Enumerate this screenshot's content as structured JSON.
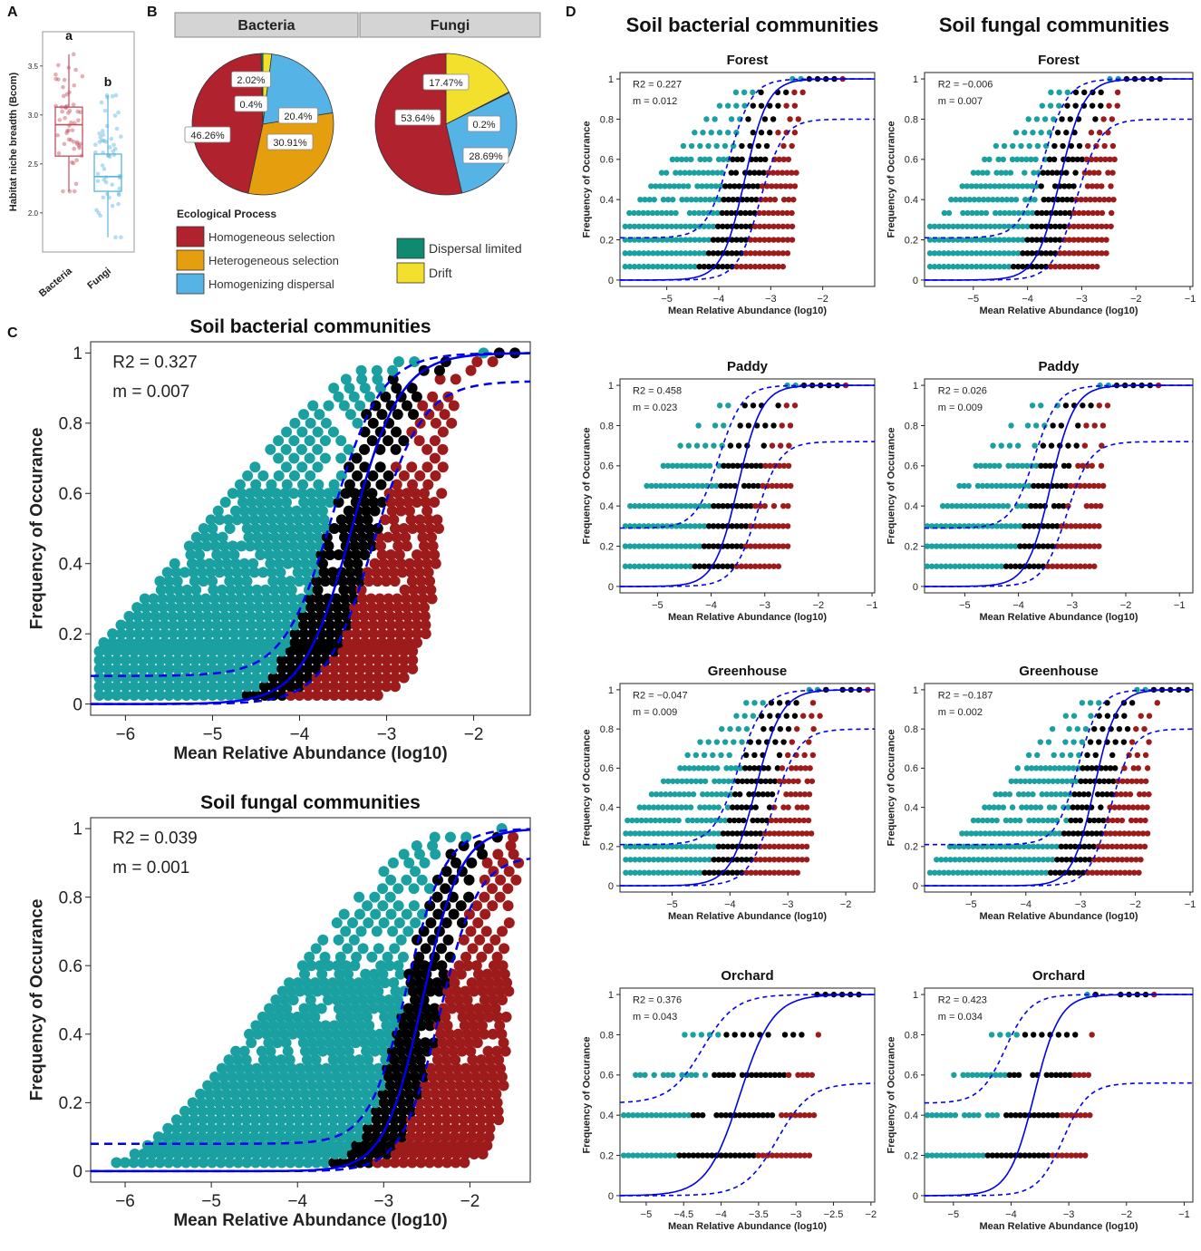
{
  "colors": {
    "homogeneous_selection": "#b0222d",
    "heterogeneous_selection": "#e59f0e",
    "homogenizing_dispersal": "#55b4e5",
    "dispersal_limited": "#0f8a71",
    "drift": "#f2e02c",
    "neutral_fit": "#0000ee",
    "above": "#1aa0a0",
    "below": "#9e1b1b",
    "within": "#000000",
    "bacteria_box": "#c0505a",
    "fungi_box": "#5ab4e0"
  },
  "panel_labels": {
    "a": "A",
    "b": "B",
    "c": "C",
    "d": "D"
  },
  "chart_data": [
    {
      "id": "A",
      "type": "box",
      "ylabel": "Habitat niche breadth (Bcom)",
      "categories": [
        "Bacteria",
        "Fungi"
      ],
      "ylim": [
        1.6,
        3.85
      ],
      "yticks": [
        2.0,
        2.5,
        3.0,
        3.5
      ],
      "ytick_labels": [
        "2.0",
        "2.5",
        "3.0",
        "3.5"
      ],
      "boxes": [
        {
          "name": "Bacteria",
          "min": 2.22,
          "q1": 2.58,
          "median": 2.9,
          "q3": 3.08,
          "max": 3.62,
          "letter": "a"
        },
        {
          "name": "Fungi",
          "min": 1.75,
          "q1": 2.22,
          "median": 2.37,
          "q3": 2.6,
          "max": 3.2,
          "letter": "b"
        }
      ]
    },
    {
      "id": "B",
      "type": "pie",
      "legend_title": "Ecological Process",
      "legend": [
        "Homogeneous selection",
        "Heterogeneous selection",
        "Homogenizing dispersal",
        "Dispersal limited",
        "Drift"
      ],
      "pies": [
        {
          "title": "Bacteria",
          "slices": [
            {
              "label": "Drift",
              "value": 2.02,
              "text": "2.02%"
            },
            {
              "label": "Homogenizing dispersal",
              "value": 20.4,
              "text": "20.4%"
            },
            {
              "label": "Heterogeneous selection",
              "value": 30.91,
              "text": "30.91%"
            },
            {
              "label": "Homogeneous selection",
              "value": 46.26,
              "text": "46.26%"
            },
            {
              "label": "Dispersal limited",
              "value": 0.4,
              "text": "0.4%"
            }
          ]
        },
        {
          "title": "Fungi",
          "slices": [
            {
              "label": "Drift",
              "value": 17.47,
              "text": "17.47%"
            },
            {
              "label": "Heterogeneous selection",
              "value": 0.2,
              "text": "0.2%"
            },
            {
              "label": "Homogenizing dispersal",
              "value": 28.69,
              "text": "28.69%"
            },
            {
              "label": "Homogeneous selection",
              "value": 53.64,
              "text": "53.64%"
            }
          ]
        }
      ]
    },
    {
      "id": "C1",
      "type": "scatter",
      "title": "Soil bacterial communities",
      "xlabel": "Mean Relative Abundance (log10)",
      "ylabel": "Frequency of Occurance",
      "r2": "R2 = 0.327",
      "m": "m = 0.007",
      "xlim": [
        -6.4,
        -1.35
      ],
      "xticks": [
        -6,
        -5,
        -4,
        -3,
        -2
      ],
      "yticks": [
        0,
        0.2,
        0.4,
        0.6,
        0.8,
        1
      ],
      "fit_center": -3.4,
      "fit_scale": 0.28,
      "upper_dx": -0.22,
      "lower_dx": 0.25,
      "upper_min": 0.08,
      "lower_max": 0.92,
      "levels": 40,
      "xmin_data": -6.3,
      "xmax_data": -1.45
    },
    {
      "id": "C2",
      "type": "scatter",
      "title": "Soil fungal communities",
      "xlabel": "Mean Relative Abundance (log10)",
      "ylabel": "Frequency of Occurance",
      "r2": "R2 = 0.039",
      "m": "m = 0.001",
      "xlim": [
        -6.4,
        -1.3
      ],
      "xticks": [
        -6,
        -5,
        -4,
        -3,
        -2
      ],
      "yticks": [
        0,
        0.2,
        0.4,
        0.6,
        0.8,
        1
      ],
      "fit_center": -2.55,
      "fit_scale": 0.22,
      "upper_dx": -0.18,
      "lower_dx": 0.2,
      "upper_min": 0.08,
      "lower_max": 0.92,
      "levels": 40,
      "xmin_data": -6.3,
      "xmax_data": -1.4
    },
    {
      "id": "D-forest-bac",
      "type": "scatter",
      "title": "Forest",
      "column_title": "Soil bacterial communities",
      "xlabel": "Mean Relative Abundance (log10)",
      "ylabel": "Frequency of Occurance",
      "r2": "R2 = 0.227",
      "m": "m = 0.012",
      "xlim": [
        -5.9,
        -1.0
      ],
      "xticks": [
        -5,
        -4,
        -3,
        -2
      ],
      "yticks": [
        0,
        0.2,
        0.4,
        0.6,
        0.8,
        1
      ],
      "fit_center": -3.5,
      "fit_scale": 0.22,
      "upper_dx": -0.3,
      "lower_dx": 0.3,
      "upper_min": 0.21,
      "lower_max": 0.8,
      "levels": 15,
      "xmin_data": -5.8,
      "xmax_data": -1.1
    },
    {
      "id": "D-forest-fun",
      "type": "scatter",
      "title": "Forest",
      "column_title": "Soil fungal communities",
      "xlabel": "Mean Relative Abundance (log10)",
      "ylabel": "Frequency of Occurance",
      "r2": "R2 = −0.006",
      "m": "m = 0.007",
      "xlim": [
        -5.9,
        -0.95
      ],
      "xticks": [
        -5,
        -4,
        -3,
        -2,
        -1
      ],
      "yticks": [
        0,
        0.2,
        0.4,
        0.6,
        0.8,
        1
      ],
      "fit_center": -3.4,
      "fit_scale": 0.22,
      "upper_dx": -0.3,
      "lower_dx": 0.3,
      "upper_min": 0.21,
      "lower_max": 0.8,
      "levels": 15,
      "xmin_data": -5.8,
      "xmax_data": -1.05
    },
    {
      "id": "D-paddy-bac",
      "type": "scatter",
      "title": "Paddy",
      "xlabel": "Mean Relative Abundance (log10)",
      "ylabel": "Frequency of Occurance",
      "r2": "R2 = 0.458",
      "m": "m = 0.023",
      "xlim": [
        -5.7,
        -0.95
      ],
      "xticks": [
        -5,
        -4,
        -3,
        -2,
        -1
      ],
      "yticks": [
        0,
        0.2,
        0.4,
        0.6,
        0.8,
        1
      ],
      "fit_center": -3.5,
      "fit_scale": 0.22,
      "upper_dx": -0.35,
      "lower_dx": 0.35,
      "upper_min": 0.29,
      "lower_max": 0.72,
      "levels": 10,
      "xmin_data": -5.6,
      "xmax_data": -1.0
    },
    {
      "id": "D-paddy-fun",
      "type": "scatter",
      "title": "Paddy",
      "xlabel": "Mean Relative Abundance (log10)",
      "ylabel": "Frequency of Occurance",
      "r2": "R2 = 0.026",
      "m": "m = 0.009",
      "xlim": [
        -5.75,
        -0.75
      ],
      "xticks": [
        -5,
        -4,
        -3,
        -2,
        -1
      ],
      "yticks": [
        0,
        0.2,
        0.4,
        0.6,
        0.8,
        1
      ],
      "fit_center": -3.4,
      "fit_scale": 0.22,
      "upper_dx": -0.3,
      "lower_dx": 0.3,
      "upper_min": 0.29,
      "lower_max": 0.72,
      "levels": 10,
      "xmin_data": -5.7,
      "xmax_data": -0.85
    },
    {
      "id": "D-greenhouse-bac",
      "type": "scatter",
      "title": "Greenhouse",
      "xlabel": "Mean Relative Abundance (log10)",
      "ylabel": "Frequency of Occurance",
      "r2": "R2 = −0.047",
      "m": "m = 0.009",
      "xlim": [
        -5.9,
        -1.5
      ],
      "xticks": [
        -5,
        -4,
        -3,
        -2
      ],
      "yticks": [
        0,
        0.2,
        0.4,
        0.6,
        0.8,
        1
      ],
      "fit_center": -3.55,
      "fit_scale": 0.22,
      "upper_dx": -0.3,
      "lower_dx": 0.3,
      "upper_min": 0.21,
      "lower_max": 0.8,
      "levels": 15,
      "xmin_data": -5.8,
      "xmax_data": -1.6
    },
    {
      "id": "D-greenhouse-fun",
      "type": "scatter",
      "title": "Greenhouse",
      "xlabel": "Mean Relative Abundance (log10)",
      "ylabel": "Frequency of Occurance",
      "r2": "R2 = −0.187",
      "m": "m = 0.002",
      "xlim": [
        -5.85,
        -0.95
      ],
      "xticks": [
        -5,
        -4,
        -3,
        -2,
        -1
      ],
      "yticks": [
        0,
        0.2,
        0.4,
        0.6,
        0.8,
        1
      ],
      "fit_center": -2.75,
      "fit_scale": 0.2,
      "upper_dx": -0.3,
      "lower_dx": 0.3,
      "upper_min": 0.21,
      "lower_max": 0.8,
      "levels": 15,
      "xmin_data": -5.75,
      "xmax_data": -1.05
    },
    {
      "id": "D-orchard-bac",
      "type": "scatter",
      "title": "Orchard",
      "xlabel": "Mean Relative Abundance (log10)",
      "ylabel": "Frequency of Occurance",
      "r2": "R2 = 0.376",
      "m": "m = 0.043",
      "xlim": [
        -5.35,
        -1.95
      ],
      "xticks": [
        -5,
        -4.5,
        -4,
        -3.5,
        -3,
        -2.5,
        -2
      ],
      "yticks": [
        0,
        0.2,
        0.4,
        0.6,
        0.8,
        1
      ],
      "fit_center": -3.75,
      "fit_scale": 0.22,
      "upper_dx": -0.5,
      "lower_dx": 0.5,
      "upper_min": 0.46,
      "lower_max": 0.56,
      "levels": 5,
      "xmin_data": -5.3,
      "xmax_data": -2.0
    },
    {
      "id": "D-orchard-fun",
      "type": "scatter",
      "title": "Orchard",
      "xlabel": "Mean Relative Abundance (log10)",
      "ylabel": "Frequency of Occurance",
      "r2": "R2 = 0.423",
      "m": "m = 0.034",
      "xlim": [
        -5.5,
        -0.85
      ],
      "xticks": [
        -5,
        -4,
        -3,
        -2,
        -1
      ],
      "yticks": [
        0,
        0.2,
        0.4,
        0.6,
        0.8,
        1
      ],
      "fit_center": -3.6,
      "fit_scale": 0.22,
      "upper_dx": -0.5,
      "lower_dx": 0.5,
      "upper_min": 0.46,
      "lower_max": 0.56,
      "levels": 5,
      "xmin_data": -5.45,
      "xmax_data": -0.9
    }
  ]
}
